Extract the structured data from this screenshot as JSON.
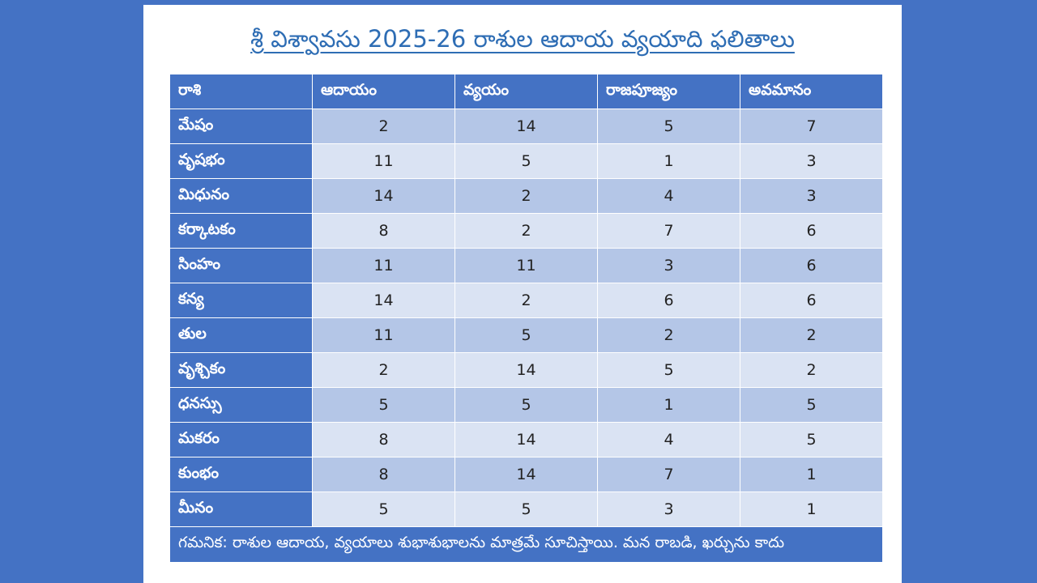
{
  "title": "శ్రీ విశ్వావసు 2025-26 రాశుల ఆదాయ వ్యయాది ఫలితాలు",
  "table": {
    "headers": [
      "రాశి",
      "ఆదాయం",
      "వ్యయం",
      "రాజపూజ్యం",
      "అవమానం"
    ],
    "rows": [
      {
        "rasi": "మేషం",
        "values": [
          "2",
          "14",
          "5",
          "7"
        ]
      },
      {
        "rasi": "వృషభం",
        "values": [
          "11",
          "5",
          "1",
          "3"
        ]
      },
      {
        "rasi": "మిధునం",
        "values": [
          "14",
          "2",
          "4",
          "3"
        ]
      },
      {
        "rasi": "కర్కాటకం",
        "values": [
          "8",
          "2",
          "7",
          "6"
        ]
      },
      {
        "rasi": "సింహం",
        "values": [
          "11",
          "11",
          "3",
          "6"
        ]
      },
      {
        "rasi": "కన్య",
        "values": [
          "14",
          "2",
          "6",
          "6"
        ]
      },
      {
        "rasi": "తుల",
        "values": [
          "11",
          "5",
          "2",
          "2"
        ]
      },
      {
        "rasi": "వృశ్చికం",
        "values": [
          "2",
          "14",
          "5",
          "2"
        ]
      },
      {
        "rasi": "ధనస్సు",
        "values": [
          "5",
          "5",
          "1",
          "5"
        ]
      },
      {
        "rasi": "మకరం",
        "values": [
          "8",
          "14",
          "4",
          "5"
        ]
      },
      {
        "rasi": "కుంభం",
        "values": [
          "8",
          "14",
          "7",
          "1"
        ]
      },
      {
        "rasi": "మీనం",
        "values": [
          "5",
          "5",
          "3",
          "1"
        ]
      }
    ],
    "note": "గమనిక: రాశుల ఆదాయ, వ్యయాలు శుభాశుభాలను మాత్రమే సూచిస్తాయి. మన రాబడి, ఖర్చును కాదు"
  },
  "colors": {
    "background": "#4472c4",
    "header_fill": "#4472c4",
    "band_dark": "#b4c6e7",
    "band_light": "#dae3f3",
    "title_text": "#2e6db4"
  }
}
